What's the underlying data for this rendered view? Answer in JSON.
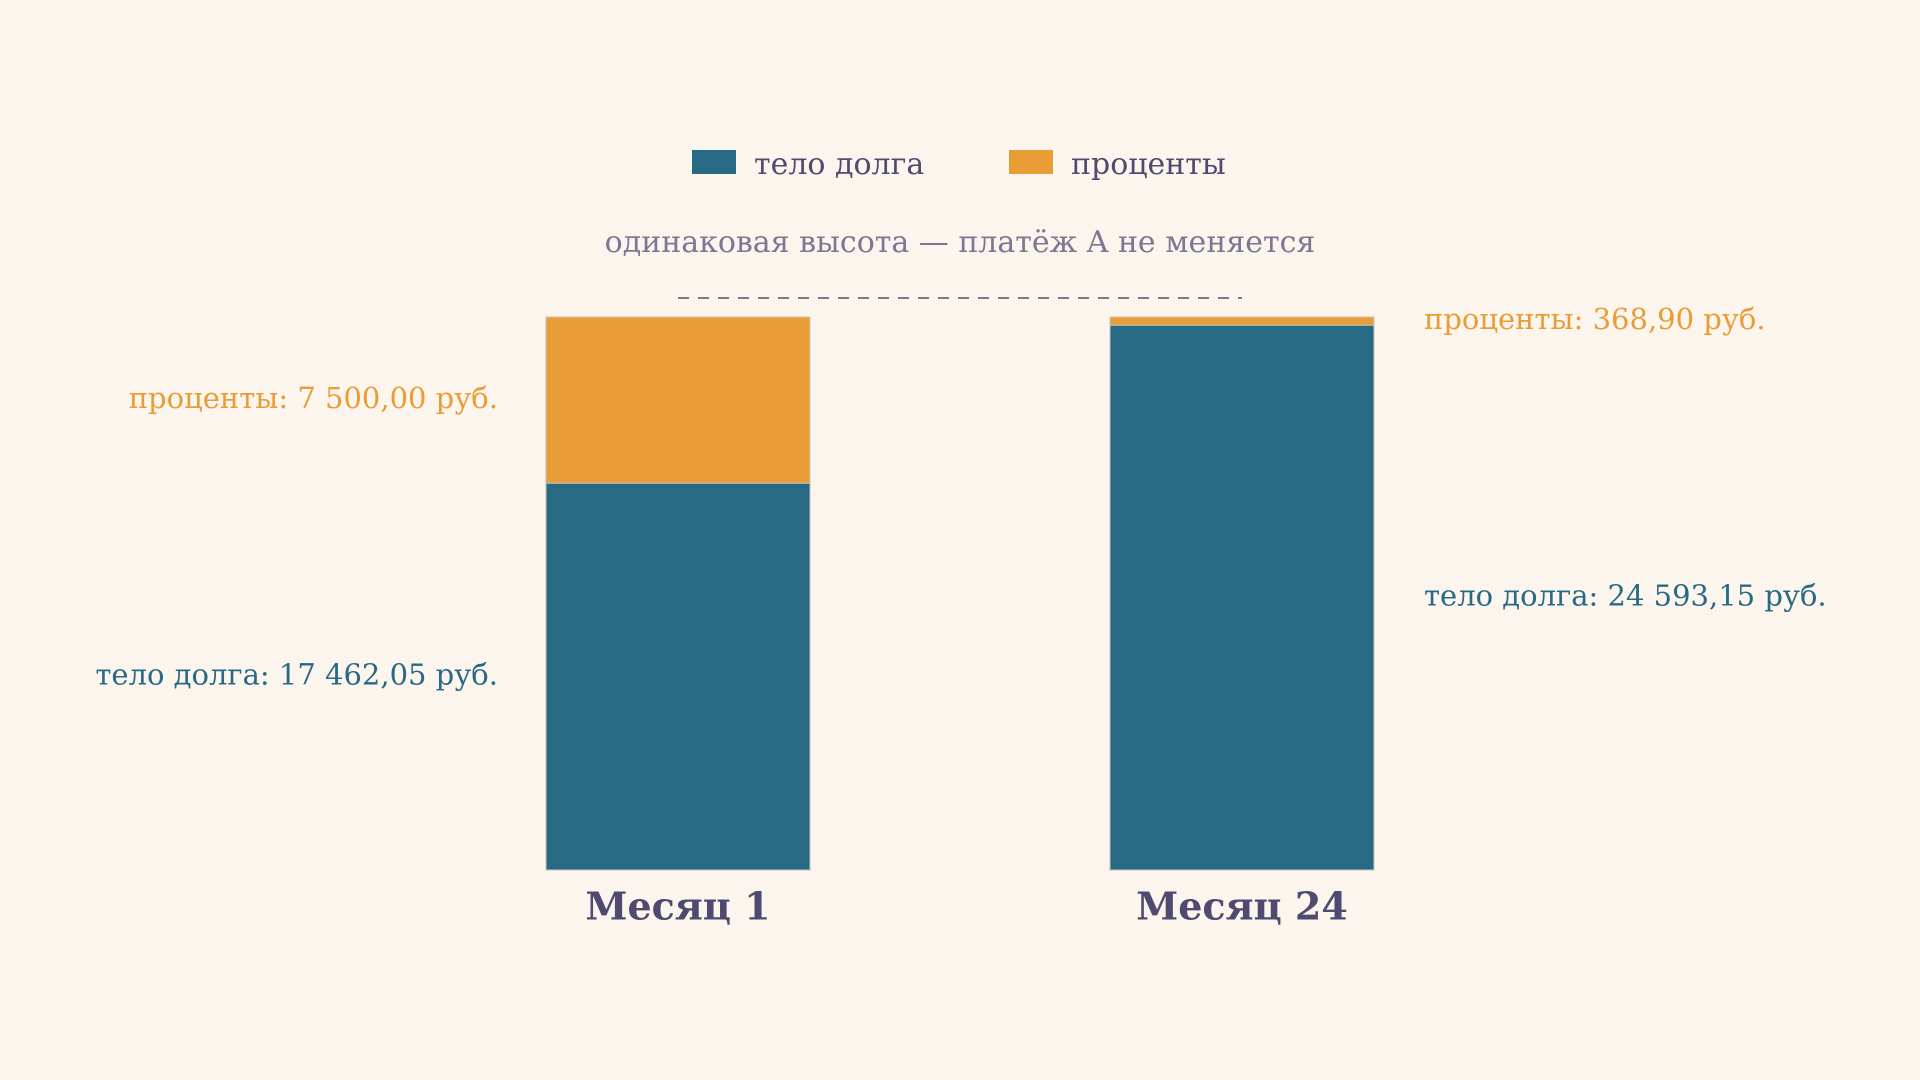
{
  "chart_data": {
    "type": "bar",
    "stacked": true,
    "categories": [
      "Месяц 1",
      "Месяц 24"
    ],
    "series": [
      {
        "name": "тело долга",
        "values": [
          17462.05,
          24593.15
        ],
        "color": "#286a84"
      },
      {
        "name": "проценты",
        "values": [
          7500.0,
          368.9
        ],
        "color": "#e99d36"
      }
    ],
    "legend": {
      "placement": "top-center"
    },
    "annotation": "одинаковая высота — платёж A не меняется",
    "bar_labels": [
      {
        "principal": "тело долга: 17 462,05 руб.",
        "interest": "проценты: 7 500,00 руб."
      },
      {
        "principal": "тело долга: 24 593,15 руб.",
        "interest": "проценты: 368,90 руб."
      }
    ],
    "grid": false,
    "colors": {
      "background": "#fbf5ee",
      "category_text": "#4f4b70",
      "annotation_text": "#7a7892",
      "legend_text": "#4f4b70"
    }
  }
}
